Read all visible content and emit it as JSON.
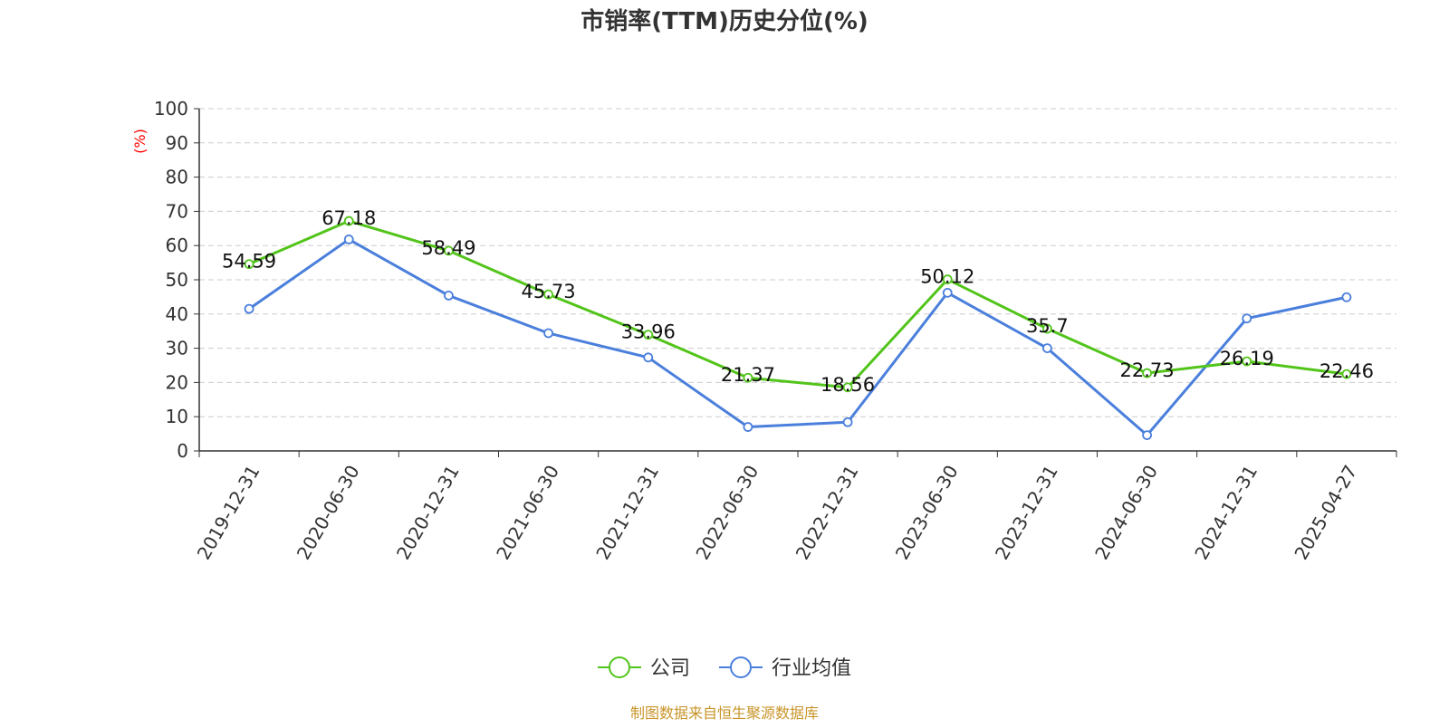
{
  "chart_data": {
    "type": "line",
    "title": "市销率(TTM)历史分位(%)",
    "ylabel": "(%)",
    "xlabel": "",
    "ylim": [
      0,
      100
    ],
    "yticks": [
      0,
      10,
      20,
      30,
      40,
      50,
      60,
      70,
      80,
      90,
      100
    ],
    "grid": true,
    "legend_position": "bottom-center",
    "categories": [
      "2019-12-31",
      "2020-06-30",
      "2020-12-31",
      "2021-06-30",
      "2021-12-31",
      "2022-06-30",
      "2022-12-31",
      "2023-06-30",
      "2023-12-31",
      "2024-06-30",
      "2024-12-31",
      "2025-04-27"
    ],
    "series": [
      {
        "name": "公司",
        "color": "#52c41a",
        "values": [
          54.59,
          67.18,
          58.49,
          45.73,
          33.96,
          21.37,
          18.56,
          50.12,
          35.7,
          22.73,
          26.19,
          22.46
        ],
        "data_labels": [
          "54.59",
          "67.18",
          "58.49",
          "45.73",
          "33.96",
          "21.37",
          "18.56",
          "50.12",
          "35.7",
          "22.73",
          "26.19",
          "22.46"
        ]
      },
      {
        "name": "行业均值",
        "color": "#4a7fdc",
        "values": [
          41.5,
          61.8,
          45.4,
          34.4,
          27.3,
          7.0,
          8.4,
          46.2,
          30.0,
          4.6,
          38.7,
          44.9
        ]
      }
    ]
  },
  "source_note": "制图数据来自恒生聚源数据库",
  "colors": {
    "title": "#333333",
    "ylabel": "#ff0000",
    "source_note": "#c8952a",
    "grid": "#cccccc",
    "axis": "#333333"
  }
}
